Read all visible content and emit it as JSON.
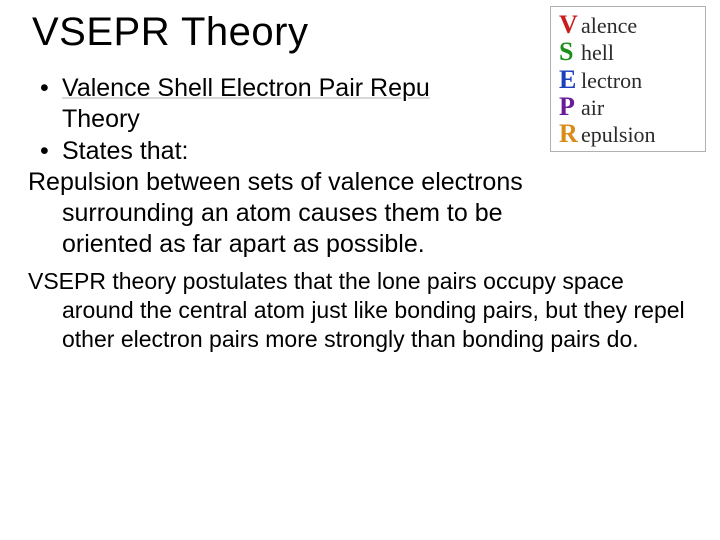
{
  "title": "VSEPR Theory",
  "bullets": {
    "b1_line1": "Valence Shell Electron Pair Repu",
    "b1_line2": "Theory",
    "b2": "States that:"
  },
  "para1": {
    "l1": "Repulsion between sets of valence electrons",
    "l2": "surrounding an atom causes them to be",
    "l3": "oriented as far apart as possible."
  },
  "para2": {
    "pre": "VSEPR theory postulates that ",
    "em": "the lone pairs",
    "post1": " occupy",
    "l2": "space around the central atom just like bonding",
    "l3": "pairs, but they repel other electron pairs more",
    "l4": "strongly than bonding pairs do."
  },
  "acrostic": {
    "rows": [
      {
        "cap": "V",
        "rest": "alence",
        "color": "#c81e1e"
      },
      {
        "cap": "S",
        "rest": "hell",
        "color": "#1a8f1a"
      },
      {
        "cap": "E",
        "rest": "lectron",
        "color": "#1a3fbf"
      },
      {
        "cap": "P",
        "rest": "air",
        "color": "#6a1a9a"
      },
      {
        "cap": "R",
        "rest": "epulsion",
        "color": "#d98c1a"
      }
    ]
  },
  "colors": {
    "background": "#ffffff",
    "text": "#000000",
    "border": "#b0b0b0"
  },
  "fonts": {
    "main": "Comic Sans MS",
    "title_size_pt": 30,
    "body_size_pt": 19,
    "para2_size_pt": 17,
    "acrostic_family": "Brush Script MT"
  }
}
